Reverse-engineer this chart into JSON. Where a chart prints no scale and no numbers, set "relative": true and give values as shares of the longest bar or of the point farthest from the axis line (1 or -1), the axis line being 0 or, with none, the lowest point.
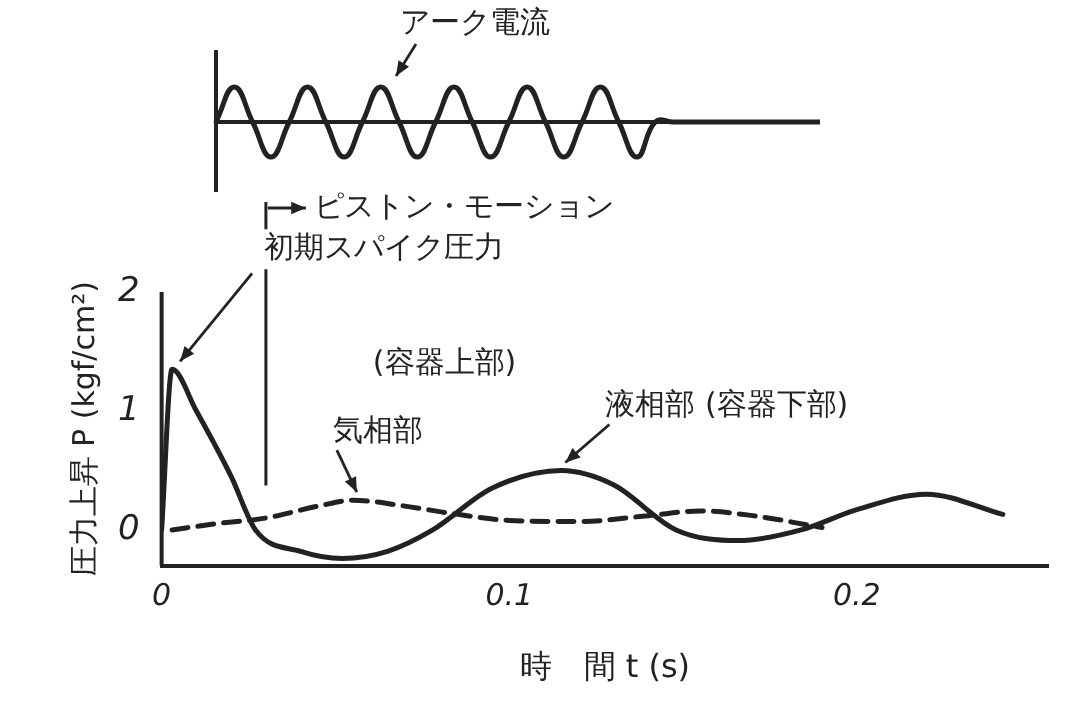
{
  "chart_data": [
    {
      "type": "line",
      "relative": true,
      "categories": [
        null,
        null,
        null,
        null,
        null,
        null,
        null,
        null,
        null,
        null,
        null,
        null,
        null,
        null,
        null,
        null,
        null,
        null,
        null,
        null,
        null,
        null,
        null,
        null,
        null,
        null,
        null,
        null,
        null,
        null,
        null,
        null,
        null,
        null
      ],
      "series": [
        {
          "color": "#222222",
          "values": [
            0,
            1,
            0,
            -1,
            0,
            1,
            0,
            -1,
            0,
            1,
            0,
            -1,
            0,
            1,
            0,
            -1,
            0,
            1,
            0,
            -1,
            0,
            1,
            0,
            -1,
            0,
            0,
            0,
            0,
            0,
            0,
            0,
            0,
            0,
            0
          ]
        }
      ],
      "annotations": [
        "アーク電流"
      ]
    },
    {
      "type": "line",
      "xlabel": "時　間 t (s)",
      "ylabel": "圧力上昇 P (kgf/cm²)",
      "xlim": [
        0,
        0.255
      ],
      "ylim": [
        -0.3,
        2
      ],
      "xticks": [
        0,
        0.1,
        0.2
      ],
      "yticks": [
        0,
        1,
        2
      ],
      "grid": false,
      "legend": false,
      "marker": "none",
      "series": [
        {
          "name": "液相部 (容器下部)",
          "color": "#222222",
          "line_style": "solid",
          "x": [
            0,
            0.003,
            0.01,
            0.02,
            0.027,
            0.04,
            0.052,
            0.065,
            0.078,
            0.095,
            0.115,
            0.13,
            0.148,
            0.166,
            0.184,
            0.2,
            0.22,
            0.242
          ],
          "values": [
            0,
            1.35,
            1.0,
            0.45,
            0,
            -0.18,
            -0.24,
            -0.18,
            0,
            0.35,
            0.5,
            0.38,
            0,
            -0.09,
            0,
            0.17,
            0.3,
            0.13
          ]
        },
        {
          "name": "気相部",
          "color": "#222222",
          "line_style": "dashed",
          "x": [
            0.003,
            0.015,
            0.03,
            0.045,
            0.055,
            0.07,
            0.083,
            0.1,
            0.12,
            0.14,
            0.155,
            0.17,
            0.19
          ],
          "values": [
            0,
            0.05,
            0.1,
            0.2,
            0.25,
            0.2,
            0.14,
            0.08,
            0.07,
            0.12,
            0.16,
            0.12,
            0.02
          ]
        }
      ],
      "ref_lines": [
        {
          "axis": "x",
          "value": 0.03,
          "label": "ピストン・モーション"
        }
      ],
      "annotations": [
        {
          "text": "初期スパイク圧力",
          "x": 0.003,
          "y": 1.35
        },
        "(容器上部)"
      ]
    }
  ]
}
